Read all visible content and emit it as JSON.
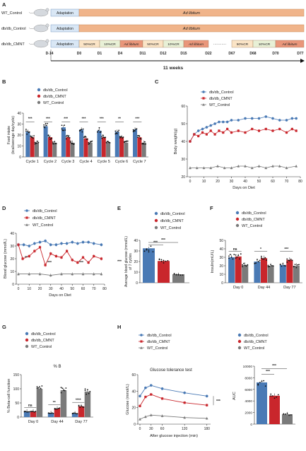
{
  "colors": {
    "control": "#4a7ab5",
    "cmnt": "#c9262c",
    "wt": "#7a7a7a",
    "timeline": "#f0b48a",
    "adapt": "#d9e7f5",
    "cr50": "#fbe4c6",
    "cr10": "#e8f0d6",
    "adlib": "#e9967a"
  },
  "panelA": {
    "letter": "A",
    "groups": [
      "WT_Control",
      "db/db_Control",
      "db/db_CMNT"
    ],
    "adaptation": "Adaptation",
    "ad_libitum": "Ad libitum",
    "cmnt_segments": [
      "50%CR",
      "10%CR",
      "Ad libitum",
      "50%CR",
      "10%CR",
      "Ad libitum",
      "50%CR",
      "10%CR",
      "Ad libitum"
    ],
    "ellipsis": "···········",
    "day_labels": [
      "D-14",
      "D0",
      "D1",
      "D4",
      "D11",
      "D12",
      "D15",
      "D22",
      "D67",
      "D68",
      "D70",
      "D77"
    ],
    "duration": "11  weeks"
  },
  "panelB": {
    "letter": "B",
    "legend": [
      "db/db_Control",
      "db/db_CMNT",
      "WT_Control"
    ],
    "stars": [
      "***",
      "***",
      "***",
      "***",
      "***",
      "**",
      "***"
    ]
  },
  "panelC": {
    "letter": "C",
    "legend": [
      "db/db_Control",
      "db/db_CMNT",
      "WT_Control"
    ]
  },
  "panelD": {
    "letter": "D",
    "legend": [
      "db/db_Control",
      "db/db_CMNT",
      "WT_Control"
    ],
    "annotations": [
      "**",
      "***",
      "***",
      "***"
    ]
  },
  "panelE": {
    "letter": "E",
    "legend": [
      "db/db_Control",
      "db/db_CMNT",
      "WT_Control"
    ],
    "stars": [
      "***",
      "***"
    ]
  },
  "panelF": {
    "letter": "F",
    "legend": [
      "db/db_Control",
      "db/db_CMNT",
      "WT_Control"
    ],
    "stars": [
      "ns",
      "*",
      "***"
    ]
  },
  "panelG": {
    "letter": "G",
    "legend": [
      "db/db_Control",
      "db/db_CMNT",
      "WT_Control"
    ],
    "subtitle": "% B",
    "stars": [
      "ns",
      "**",
      "****"
    ]
  },
  "panelH": {
    "letter": "H",
    "legend": [
      "db/db_Control",
      "db/db_CMNT",
      "WT_Control"
    ],
    "stars": [
      "***",
      "***",
      "***"
    ]
  },
  "chart_data": [
    {
      "id": "B",
      "type": "bar",
      "xlabel": "",
      "ylabel": "Food intake\n(kcal/average day/cycle)",
      "ylim": [
        0,
        40
      ],
      "yticks": [
        0,
        10,
        20,
        30,
        40
      ],
      "categories": [
        "Cycle 1",
        "Cycle 2",
        "Cycle 3",
        "Cycle 4",
        "Cycle 5",
        "Cycle 6",
        "Cycle 7"
      ],
      "series": [
        {
          "name": "db/db_Control",
          "values": [
            23,
            28,
            27,
            25,
            24,
            23,
            25
          ]
        },
        {
          "name": "db/db_CMNT",
          "values": [
            18,
            18,
            18,
            17,
            18,
            18,
            18
          ]
        },
        {
          "name": "WT_Control",
          "values": [
            13,
            13,
            13,
            13,
            13,
            13,
            13
          ]
        }
      ]
    },
    {
      "id": "C",
      "type": "line",
      "xlabel": "Days on Diet",
      "ylabel": "Body weight(g)",
      "ylim": [
        20,
        60
      ],
      "yticks": [
        20,
        30,
        40,
        50,
        60
      ],
      "xlim": [
        0,
        80
      ],
      "xticks": [
        0,
        10,
        20,
        30,
        40,
        50,
        60,
        70,
        80
      ],
      "series": [
        {
          "name": "db/db_Control",
          "x": [
            0,
            3,
            6,
            9,
            12,
            15,
            18,
            21,
            24,
            27,
            30,
            35,
            40,
            45,
            50,
            55,
            60,
            65,
            70,
            74,
            77
          ],
          "values": [
            40,
            44,
            46,
            47,
            48,
            49,
            50,
            51,
            51,
            51,
            52,
            52,
            53,
            53,
            53,
            54,
            53,
            52,
            52,
            53,
            53
          ]
        },
        {
          "name": "db/db_CMNT",
          "x": [
            0,
            3,
            6,
            9,
            12,
            15,
            18,
            21,
            24,
            27,
            30,
            35,
            40,
            45,
            50,
            55,
            60,
            65,
            70,
            74,
            77
          ],
          "values": [
            40,
            44,
            43,
            45,
            44,
            46,
            44,
            46,
            45,
            47,
            45,
            46,
            45,
            47,
            46,
            47,
            46,
            47,
            45,
            47,
            46
          ]
        },
        {
          "name": "WT_Control",
          "x": [
            0,
            5,
            10,
            15,
            20,
            25,
            30,
            35,
            40,
            45,
            50,
            55,
            60,
            65,
            70,
            77
          ],
          "values": [
            25,
            25,
            25,
            25,
            26,
            25,
            25,
            26,
            26,
            25,
            26,
            25,
            26,
            26,
            25,
            26
          ]
        }
      ]
    },
    {
      "id": "D",
      "type": "line",
      "xlabel": "Days on Diet",
      "ylabel": "Blood  glucose (mmol/L)",
      "ylim": [
        0,
        40
      ],
      "yticks": [
        0,
        10,
        20,
        30,
        40
      ],
      "xlim": [
        0,
        80
      ],
      "xticks": [
        0,
        10,
        20,
        30,
        40,
        50,
        60,
        70,
        80
      ],
      "series": [
        {
          "name": "db/db_Control",
          "x": [
            0,
            5,
            10,
            15,
            20,
            25,
            30,
            35,
            40,
            45,
            50,
            55,
            60,
            65,
            70,
            77
          ],
          "values": [
            31,
            31,
            30,
            32,
            33,
            34,
            31,
            31,
            32,
            32,
            33,
            32,
            33,
            33,
            32,
            31
          ]
        },
        {
          "name": "db/db_CMNT",
          "x": [
            0,
            4,
            10,
            15,
            20,
            25,
            30,
            35,
            40,
            45,
            50,
            55,
            60,
            65,
            70,
            77
          ],
          "values": [
            31,
            20,
            22,
            26,
            29,
            15,
            24,
            22,
            21,
            26,
            19,
            17,
            21,
            17,
            22,
            20
          ]
        },
        {
          "name": "WT_Control",
          "x": [
            0,
            10,
            20,
            30,
            40,
            50,
            60,
            70,
            77
          ],
          "values": [
            8,
            8,
            8,
            7,
            8,
            8,
            8,
            8,
            8
          ]
        }
      ]
    },
    {
      "id": "E",
      "type": "bar",
      "xlabel": "",
      "ylabel": "Average blood glucose (mmol/L)\nof 7 cycles",
      "ylim": [
        0,
        40
      ],
      "yticks": [
        0,
        10,
        20,
        30,
        40
      ],
      "categories": [
        "db/db_Control",
        "db/db_CMNT",
        "WT_Control"
      ],
      "values": [
        32.5,
        20.5,
        8
      ]
    },
    {
      "id": "F",
      "type": "bar",
      "xlabel": "",
      "ylabel": "Insulin(mU/L)",
      "ylim": [
        0,
        50
      ],
      "yticks": [
        0,
        10,
        20,
        30,
        40,
        50
      ],
      "categories": [
        "Day 0",
        "Day 44",
        "Day 77"
      ],
      "series": [
        {
          "name": "db/db_Control",
          "values": [
            30,
            25,
            21
          ]
        },
        {
          "name": "db/db_CMNT",
          "values": [
            31,
            29,
            27
          ]
        },
        {
          "name": "WT_Control",
          "values": [
            21,
            20,
            20
          ]
        }
      ]
    },
    {
      "id": "G",
      "type": "bar",
      "xlabel": "",
      "ylabel": "% Beta-cell function",
      "ylim": [
        0,
        150
      ],
      "yticks": [
        0,
        50,
        100,
        150
      ],
      "categories": [
        "Day  0",
        "Day  44",
        "Day  77"
      ],
      "series": [
        {
          "name": "db/db_Control",
          "values": [
            20,
            14,
            13
          ]
        },
        {
          "name": "db/db_CMNT",
          "values": [
            20,
            30,
            38
          ]
        },
        {
          "name": "WT_Control",
          "values": [
            100,
            95,
            90
          ]
        }
      ]
    },
    {
      "id": "H1",
      "type": "line",
      "title": "Glucose tolerance test",
      "xlabel": "After  glucose  injection (min)",
      "ylabel": "Glucose (mmol/L)",
      "ylim": [
        0,
        60
      ],
      "yticks": [
        0,
        20,
        40,
        60
      ],
      "xlim": [
        0,
        190
      ],
      "xticks": [
        0,
        30,
        60,
        120,
        180
      ],
      "series": [
        {
          "name": "db/db_Control",
          "x": [
            0,
            15,
            30,
            60,
            120,
            180
          ],
          "values": [
            34,
            44,
            47,
            43,
            38,
            34
          ]
        },
        {
          "name": "db/db_CMNT",
          "x": [
            0,
            15,
            30,
            60,
            120,
            180
          ],
          "values": [
            22,
            33,
            36,
            31,
            26,
            23
          ]
        },
        {
          "name": "WT_Control",
          "x": [
            0,
            15,
            30,
            60,
            120,
            180
          ],
          "values": [
            6,
            9,
            11,
            10,
            8,
            7
          ]
        }
      ]
    },
    {
      "id": "H2",
      "type": "bar",
      "xlabel": "",
      "ylabel": "AUC",
      "ylim": [
        0,
        10000
      ],
      "yticks": [
        0,
        2000,
        4000,
        6000,
        8000,
        10000
      ],
      "categories": [
        "db/db_Control",
        "db/db_CMNT",
        "WT_Control"
      ],
      "values": [
        7200,
        4900,
        1700
      ]
    }
  ]
}
